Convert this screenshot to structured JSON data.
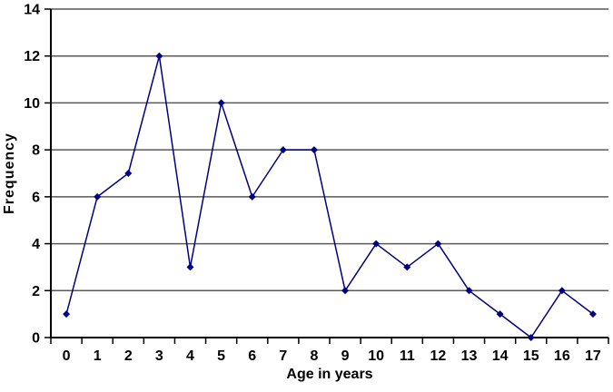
{
  "chart_data": {
    "type": "line",
    "title": "",
    "xlabel": "Age in years",
    "ylabel": "Frequency",
    "categories": [
      "0",
      "1",
      "2",
      "3",
      "4",
      "5",
      "6",
      "7",
      "8",
      "9",
      "10",
      "11",
      "12",
      "13",
      "14",
      "15",
      "16",
      "17"
    ],
    "series": [
      {
        "name": "Frequency",
        "values": [
          1,
          6,
          7,
          12,
          3,
          10,
          6,
          8,
          8,
          2,
          4,
          3,
          4,
          2,
          1,
          0,
          2,
          1
        ]
      }
    ],
    "yticks": [
      0,
      2,
      4,
      6,
      8,
      10,
      12,
      14
    ],
    "ylim": [
      0,
      14
    ],
    "grid": true,
    "legend_position": "none",
    "marker": "diamond",
    "colors": {
      "line": "#000080",
      "marker": "#000080",
      "gridline": "#595959",
      "axis": "#000000",
      "text": "#000000",
      "background": "#ffffff"
    }
  }
}
